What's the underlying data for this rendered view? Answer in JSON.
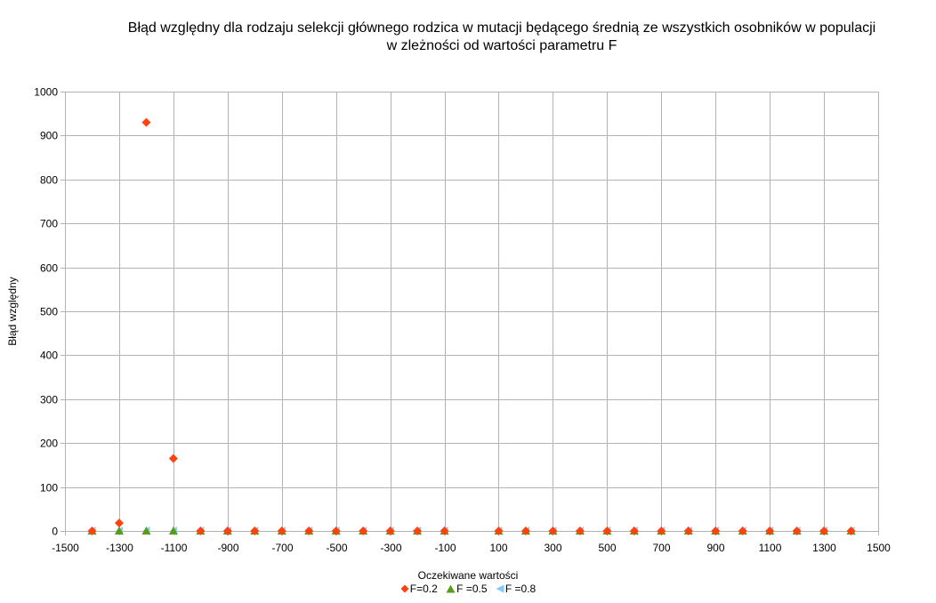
{
  "chart_data": {
    "type": "scatter",
    "title_lines": [
      "Błąd względny dla  rodzaju selekcji głównego rodzica w mutacji będącego średnią ze wszystkich osobników w populacji",
      "w zleżności od wartości parametru F"
    ],
    "xlabel": "Oczekiwane wartości",
    "ylabel": "Błąd względny",
    "xlim": [
      -1500,
      1500
    ],
    "ylim": [
      0,
      1000
    ],
    "x_ticks": [
      "-1500",
      "-1300",
      "-1100",
      "-900",
      "-700",
      "-500",
      "-300",
      "-100",
      "100",
      "300",
      "500",
      "700",
      "900",
      "1100",
      "1300",
      "1500"
    ],
    "y_ticks": [
      "0",
      "100",
      "200",
      "300",
      "400",
      "500",
      "600",
      "700",
      "800",
      "900",
      "1000"
    ],
    "grid": true,
    "legend_position": "bottom",
    "series": [
      {
        "name": "F=0.2",
        "marker": "diamond",
        "color": "#ff420e",
        "x": [
          -1400,
          -1300,
          -1200,
          -1100,
          -1000,
          -900,
          -800,
          -700,
          -600,
          -500,
          -400,
          -300,
          -200,
          -100,
          100,
          200,
          300,
          400,
          500,
          600,
          700,
          800,
          900,
          1000,
          1100,
          1200,
          1300,
          1400
        ],
        "y": [
          0,
          18,
          930,
          165,
          0,
          0,
          0,
          0,
          0,
          0,
          0,
          0,
          0,
          0,
          0,
          0,
          0,
          0,
          0,
          0,
          0,
          0,
          0,
          0,
          0,
          0,
          0,
          0
        ]
      },
      {
        "name": "F =0.5",
        "marker": "triangle-up",
        "color": "#579d1c",
        "x": [
          -1400,
          -1300,
          -1200,
          -1100,
          -1000,
          -900,
          -800,
          -700,
          -600,
          -500,
          -400,
          -300,
          -200,
          -100,
          100,
          200,
          300,
          400,
          500,
          600,
          700,
          800,
          900,
          1000,
          1100,
          1200,
          1300,
          1400
        ],
        "y": [
          0,
          0,
          0,
          0,
          0,
          0,
          0,
          0,
          0,
          0,
          0,
          0,
          0,
          0,
          0,
          0,
          0,
          0,
          0,
          0,
          0,
          0,
          0,
          0,
          0,
          0,
          0,
          0
        ]
      },
      {
        "name": "F =0.8",
        "marker": "triangle-left",
        "color": "#83caff",
        "x": [
          -1400,
          -1300,
          -1200,
          -1100,
          -1000,
          -900,
          -800,
          -700,
          -600,
          -500,
          -400,
          -300,
          -200,
          -100,
          100,
          200,
          300,
          400,
          500,
          600,
          700,
          800,
          900,
          1000,
          1100,
          1200,
          1300,
          1400
        ],
        "y": [
          0,
          0,
          0,
          0,
          0,
          0,
          0,
          0,
          0,
          0,
          0,
          0,
          0,
          0,
          0,
          0,
          0,
          0,
          0,
          0,
          0,
          0,
          0,
          0,
          0,
          0,
          0,
          0
        ]
      }
    ]
  }
}
